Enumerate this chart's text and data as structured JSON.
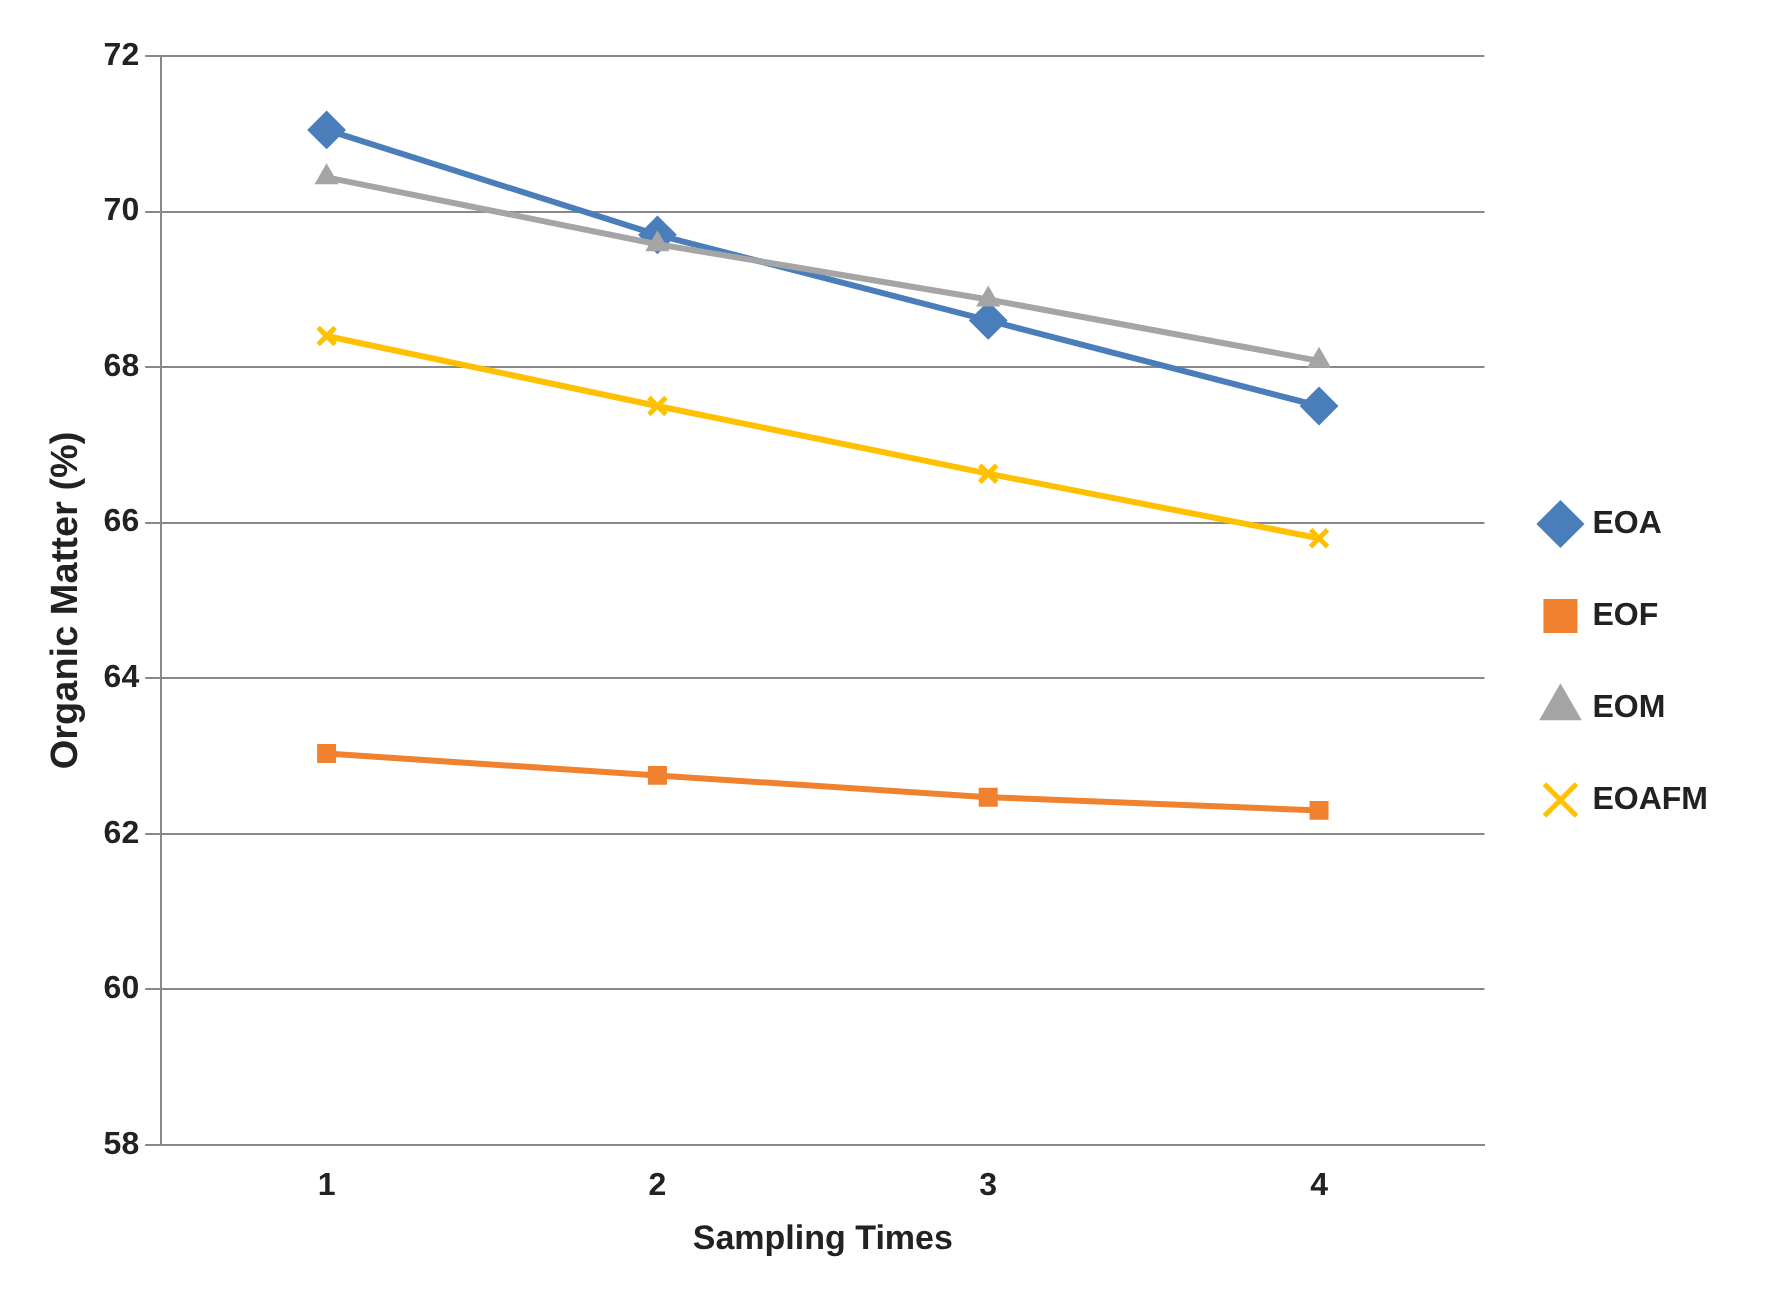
{
  "chart_data": {
    "type": "line",
    "xlabel": "Sampling Times",
    "ylabel": "Organic Matter (%)",
    "categories": [
      "1",
      "2",
      "3",
      "4"
    ],
    "series": [
      {
        "name": "EOA",
        "color": "#4a7ebb",
        "marker": "diamond",
        "values": [
          71.05,
          69.7,
          68.6,
          67.5
        ]
      },
      {
        "name": "EOF",
        "color": "#f0812f",
        "marker": "square",
        "values": [
          63.03,
          62.75,
          62.47,
          62.3
        ]
      },
      {
        "name": "EOM",
        "color": "#a5a5a5",
        "marker": "triangle",
        "values": [
          70.44,
          69.58,
          68.87,
          68.08
        ]
      },
      {
        "name": "EOAFM",
        "color": "#ffc000",
        "marker": "cross",
        "values": [
          68.4,
          67.5,
          66.63,
          65.8
        ]
      }
    ],
    "ylim": [
      58,
      72
    ],
    "yticks": [
      58,
      60,
      62,
      64,
      66,
      68,
      70,
      72
    ],
    "grid": "y",
    "legend": "right",
    "line_style": "solid"
  }
}
